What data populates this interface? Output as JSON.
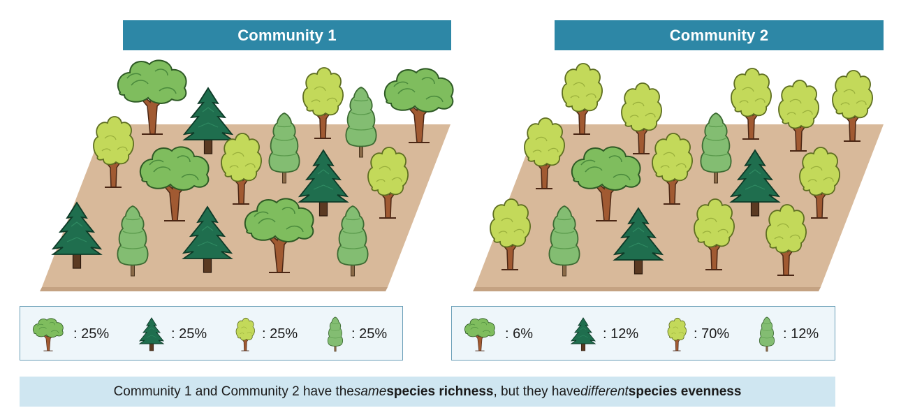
{
  "communities": [
    {
      "title": "Community 1",
      "legend": [
        {
          "species": "broadleaf-tree",
          "percent": ": 25%"
        },
        {
          "species": "pine-tree",
          "percent": ": 25%"
        },
        {
          "species": "yellow-tree",
          "percent": ": 25%"
        },
        {
          "species": "cypress-tree",
          "percent": ": 25%"
        }
      ]
    },
    {
      "title": "Community 2",
      "legend": [
        {
          "species": "broadleaf-tree",
          "percent": ": 6%"
        },
        {
          "species": "pine-tree",
          "percent": ": 12%"
        },
        {
          "species": "yellow-tree",
          "percent": ": 70%"
        },
        {
          "species": "cypress-tree",
          "percent": ": 12%"
        }
      ]
    }
  ],
  "footer": {
    "part1": "Community 1 and Community 2 have the ",
    "part2": "same",
    "part3": " species richness",
    "part4": ", but they have ",
    "part5": "different",
    "part6": " species evenness"
  },
  "colors": {
    "title_bar": "#2d87a6",
    "ground": "#d8b99a",
    "broadleaf": "#7fbd5e",
    "pine": "#1f6e4e",
    "yellow": "#c3d95a",
    "cypress": "#83bd72",
    "legend_bg": "#eef6fa",
    "footer_bg": "#cfe6f1"
  }
}
